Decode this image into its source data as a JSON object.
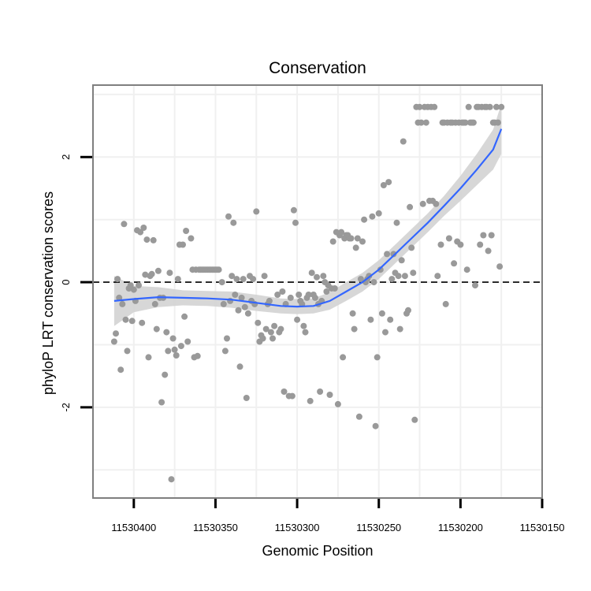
{
  "chart_data": {
    "type": "scatter",
    "title": "Conservation",
    "xlabel": "Genomic Position",
    "ylabel": "phyloP LRT conservation scores",
    "x_reversed": true,
    "xlim": [
      11530150,
      11530425
    ],
    "ylim": [
      -3.45,
      3.15
    ],
    "xticks": [
      11530400,
      11530350,
      11530300,
      11530250,
      11530200,
      11530150
    ],
    "xtick_labels": [
      "11530400",
      "11530350",
      "11530300",
      "11530250",
      "11530200",
      "11530150"
    ],
    "yticks": [
      2,
      0,
      -2
    ],
    "ytick_labels": [
      "2",
      "0",
      "-2"
    ],
    "reference_line": {
      "y": 0,
      "style": "dashed"
    },
    "grid": true,
    "colors": {
      "points": "#999999",
      "smooth_line": "#3366ff",
      "ribbon": "#d3d3d3",
      "panel_border": "#7f7f7f",
      "grid": "#f0f0f0"
    },
    "points": [
      {
        "x": 11530412,
        "y": -0.95
      },
      {
        "x": 11530411,
        "y": -0.82
      },
      {
        "x": 11530410,
        "y": 0.05
      },
      {
        "x": 11530409,
        "y": -0.25
      },
      {
        "x": 11530408,
        "y": -1.4
      },
      {
        "x": 11530407,
        "y": -0.35
      },
      {
        "x": 11530406,
        "y": 0.93
      },
      {
        "x": 11530405,
        "y": -0.6
      },
      {
        "x": 11530404,
        "y": -1.1
      },
      {
        "x": 11530403,
        "y": -0.1
      },
      {
        "x": 11530402,
        "y": -0.05
      },
      {
        "x": 11530401,
        "y": -0.62
      },
      {
        "x": 11530400,
        "y": -0.12
      },
      {
        "x": 11530399,
        "y": -0.3
      },
      {
        "x": 11530398,
        "y": 0.83
      },
      {
        "x": 11530397,
        "y": -0.05
      },
      {
        "x": 11530396,
        "y": 0.8
      },
      {
        "x": 11530395,
        "y": -0.65
      },
      {
        "x": 11530394,
        "y": 0.87
      },
      {
        "x": 11530393,
        "y": 0.12
      },
      {
        "x": 11530392,
        "y": 0.68
      },
      {
        "x": 11530391,
        "y": -1.2
      },
      {
        "x": 11530390,
        "y": 0.1
      },
      {
        "x": 11530389,
        "y": 0.13
      },
      {
        "x": 11530388,
        "y": 0.67
      },
      {
        "x": 11530387,
        "y": -0.35
      },
      {
        "x": 11530386,
        "y": -0.75
      },
      {
        "x": 11530385,
        "y": 0.18
      },
      {
        "x": 11530384,
        "y": -0.25
      },
      {
        "x": 11530383,
        "y": -1.92
      },
      {
        "x": 11530382,
        "y": -0.25
      },
      {
        "x": 11530381,
        "y": -1.48
      },
      {
        "x": 11530380,
        "y": -0.8
      },
      {
        "x": 11530379,
        "y": -1.1
      },
      {
        "x": 11530378,
        "y": 0.15
      },
      {
        "x": 11530377,
        "y": -3.15
      },
      {
        "x": 11530376,
        "y": -0.9
      },
      {
        "x": 11530375,
        "y": -1.08
      },
      {
        "x": 11530374,
        "y": -1.17
      },
      {
        "x": 11530373,
        "y": 0.05
      },
      {
        "x": 11530372,
        "y": 0.6
      },
      {
        "x": 11530371,
        "y": -1.02
      },
      {
        "x": 11530370,
        "y": 0.6
      },
      {
        "x": 11530369,
        "y": -0.55
      },
      {
        "x": 11530368,
        "y": 0.82
      },
      {
        "x": 11530367,
        "y": -0.95
      },
      {
        "x": 11530365,
        "y": 0.7
      },
      {
        "x": 11530364,
        "y": 0.2
      },
      {
        "x": 11530363,
        "y": -1.2
      },
      {
        "x": 11530362,
        "y": 0.2
      },
      {
        "x": 11530361,
        "y": -1.18
      },
      {
        "x": 11530360,
        "y": 0.2
      },
      {
        "x": 11530359,
        "y": 0.2
      },
      {
        "x": 11530358,
        "y": 0.2
      },
      {
        "x": 11530357,
        "y": 0.2
      },
      {
        "x": 11530356,
        "y": 0.2
      },
      {
        "x": 11530355,
        "y": 0.2
      },
      {
        "x": 11530354,
        "y": 0.2
      },
      {
        "x": 11530353,
        "y": 0.2
      },
      {
        "x": 11530352,
        "y": 0.2
      },
      {
        "x": 11530351,
        "y": 0.2
      },
      {
        "x": 11530350,
        "y": 0.2
      },
      {
        "x": 11530349,
        "y": 0.2
      },
      {
        "x": 11530348,
        "y": 0.2
      },
      {
        "x": 11530346,
        "y": 0.0
      },
      {
        "x": 11530345,
        "y": -0.35
      },
      {
        "x": 11530344,
        "y": -1.1
      },
      {
        "x": 11530343,
        "y": -0.9
      },
      {
        "x": 11530342,
        "y": 1.05
      },
      {
        "x": 11530341,
        "y": -0.3
      },
      {
        "x": 11530340,
        "y": 0.1
      },
      {
        "x": 11530339,
        "y": 0.95
      },
      {
        "x": 11530338,
        "y": -0.2
      },
      {
        "x": 11530337,
        "y": 0.05
      },
      {
        "x": 11530336,
        "y": -0.45
      },
      {
        "x": 11530335,
        "y": -1.35
      },
      {
        "x": 11530334,
        "y": -0.25
      },
      {
        "x": 11530333,
        "y": 0.05
      },
      {
        "x": 11530332,
        "y": -0.4
      },
      {
        "x": 11530331,
        "y": -1.85
      },
      {
        "x": 11530330,
        "y": -0.5
      },
      {
        "x": 11530329,
        "y": 0.1
      },
      {
        "x": 11530328,
        "y": -0.3
      },
      {
        "x": 11530327,
        "y": 0.05
      },
      {
        "x": 11530326,
        "y": -0.35
      },
      {
        "x": 11530325,
        "y": 1.13
      },
      {
        "x": 11530324,
        "y": -0.65
      },
      {
        "x": 11530323,
        "y": -0.95
      },
      {
        "x": 11530322,
        "y": -0.85
      },
      {
        "x": 11530321,
        "y": -0.9
      },
      {
        "x": 11530320,
        "y": 0.1
      },
      {
        "x": 11530319,
        "y": -0.75
      },
      {
        "x": 11530318,
        "y": -0.35
      },
      {
        "x": 11530317,
        "y": -0.3
      },
      {
        "x": 11530316,
        "y": -0.8
      },
      {
        "x": 11530315,
        "y": -0.9
      },
      {
        "x": 11530314,
        "y": -0.7
      },
      {
        "x": 11530312,
        "y": -0.2
      },
      {
        "x": 11530311,
        "y": -0.8
      },
      {
        "x": 11530310,
        "y": -0.75
      },
      {
        "x": 11530309,
        "y": -0.15
      },
      {
        "x": 11530308,
        "y": -1.75
      },
      {
        "x": 11530307,
        "y": -0.35
      },
      {
        "x": 11530305,
        "y": -1.82
      },
      {
        "x": 11530304,
        "y": -0.25
      },
      {
        "x": 11530303,
        "y": -1.82
      },
      {
        "x": 11530302,
        "y": 1.15
      },
      {
        "x": 11530301,
        "y": 0.95
      },
      {
        "x": 11530300,
        "y": -0.6
      },
      {
        "x": 11530299,
        "y": -0.2
      },
      {
        "x": 11530298,
        "y": -0.3
      },
      {
        "x": 11530297,
        "y": -0.35
      },
      {
        "x": 11530296,
        "y": -0.7
      },
      {
        "x": 11530295,
        "y": -0.8
      },
      {
        "x": 11530294,
        "y": -0.25
      },
      {
        "x": 11530293,
        "y": -0.2
      },
      {
        "x": 11530292,
        "y": -1.9
      },
      {
        "x": 11530291,
        "y": 0.15
      },
      {
        "x": 11530290,
        "y": -0.2
      },
      {
        "x": 11530289,
        "y": -0.25
      },
      {
        "x": 11530288,
        "y": 0.08
      },
      {
        "x": 11530287,
        "y": -0.35
      },
      {
        "x": 11530286,
        "y": -1.75
      },
      {
        "x": 11530285,
        "y": -0.3
      },
      {
        "x": 11530284,
        "y": 0.1
      },
      {
        "x": 11530283,
        "y": 0.0
      },
      {
        "x": 11530282,
        "y": -0.15
      },
      {
        "x": 11530281,
        "y": -0.05
      },
      {
        "x": 11530280,
        "y": -1.8
      },
      {
        "x": 11530279,
        "y": -0.1
      },
      {
        "x": 11530278,
        "y": 0.65
      },
      {
        "x": 11530277,
        "y": -0.1
      },
      {
        "x": 11530276,
        "y": 0.8
      },
      {
        "x": 11530275,
        "y": -1.95
      },
      {
        "x": 11530274,
        "y": 0.75
      },
      {
        "x": 11530273,
        "y": 0.8
      },
      {
        "x": 11530272,
        "y": -1.2
      },
      {
        "x": 11530271,
        "y": 0.7
      },
      {
        "x": 11530270,
        "y": 0.75
      },
      {
        "x": 11530269,
        "y": 0.75
      },
      {
        "x": 11530268,
        "y": 0.7
      },
      {
        "x": 11530267,
        "y": 0.7
      },
      {
        "x": 11530266,
        "y": -0.5
      },
      {
        "x": 11530265,
        "y": -0.75
      },
      {
        "x": 11530264,
        "y": 0.55
      },
      {
        "x": 11530263,
        "y": 0.7
      },
      {
        "x": 11530262,
        "y": -2.15
      },
      {
        "x": 11530261,
        "y": 0.05
      },
      {
        "x": 11530260,
        "y": 0.65
      },
      {
        "x": 11530259,
        "y": 1.0
      },
      {
        "x": 11530258,
        "y": 0.0
      },
      {
        "x": 11530257,
        "y": 0.05
      },
      {
        "x": 11530256,
        "y": 0.1
      },
      {
        "x": 11530255,
        "y": -0.6
      },
      {
        "x": 11530254,
        "y": 1.05
      },
      {
        "x": 11530253,
        "y": 0.0
      },
      {
        "x": 11530252,
        "y": -2.3
      },
      {
        "x": 11530251,
        "y": -1.2
      },
      {
        "x": 11530250,
        "y": 1.1
      },
      {
        "x": 11530249,
        "y": 0.2
      },
      {
        "x": 11530248,
        "y": -0.5
      },
      {
        "x": 11530247,
        "y": 1.55
      },
      {
        "x": 11530246,
        "y": -0.8
      },
      {
        "x": 11530245,
        "y": 0.45
      },
      {
        "x": 11530244,
        "y": 1.6
      },
      {
        "x": 11530243,
        "y": -0.6
      },
      {
        "x": 11530242,
        "y": 0.05
      },
      {
        "x": 11530241,
        "y": 0.45
      },
      {
        "x": 11530240,
        "y": 0.15
      },
      {
        "x": 11530239,
        "y": 0.95
      },
      {
        "x": 11530238,
        "y": 0.1
      },
      {
        "x": 11530237,
        "y": -0.75
      },
      {
        "x": 11530236,
        "y": 0.35
      },
      {
        "x": 11530235,
        "y": 2.25
      },
      {
        "x": 11530234,
        "y": 0.1
      },
      {
        "x": 11530233,
        "y": -0.5
      },
      {
        "x": 11530232,
        "y": -0.45
      },
      {
        "x": 11530231,
        "y": 1.2
      },
      {
        "x": 11530230,
        "y": 0.55
      },
      {
        "x": 11530229,
        "y": 0.15
      },
      {
        "x": 11530228,
        "y": -2.2
      },
      {
        "x": 11530227,
        "y": 2.8
      },
      {
        "x": 11530226,
        "y": 2.55
      },
      {
        "x": 11530225,
        "y": 2.8
      },
      {
        "x": 11530224,
        "y": 2.55
      },
      {
        "x": 11530223,
        "y": 1.25
      },
      {
        "x": 11530222,
        "y": 2.8
      },
      {
        "x": 11530221,
        "y": 2.55
      },
      {
        "x": 11530220,
        "y": 2.8
      },
      {
        "x": 11530219,
        "y": 1.3
      },
      {
        "x": 11530218,
        "y": 2.8
      },
      {
        "x": 11530217,
        "y": 1.3
      },
      {
        "x": 11530216,
        "y": 2.8
      },
      {
        "x": 11530215,
        "y": 1.25
      },
      {
        "x": 11530214,
        "y": 0.1
      },
      {
        "x": 11530212,
        "y": 0.6
      },
      {
        "x": 11530211,
        "y": 2.55
      },
      {
        "x": 11530210,
        "y": 2.55
      },
      {
        "x": 11530209,
        "y": -0.35
      },
      {
        "x": 11530208,
        "y": 2.55
      },
      {
        "x": 11530207,
        "y": 0.7
      },
      {
        "x": 11530206,
        "y": 2.55
      },
      {
        "x": 11530205,
        "y": 2.55
      },
      {
        "x": 11530204,
        "y": 0.3
      },
      {
        "x": 11530203,
        "y": 2.55
      },
      {
        "x": 11530202,
        "y": 0.65
      },
      {
        "x": 11530201,
        "y": 2.55
      },
      {
        "x": 11530200,
        "y": 0.6
      },
      {
        "x": 11530199,
        "y": 2.55
      },
      {
        "x": 11530198,
        "y": 2.55
      },
      {
        "x": 11530197,
        "y": 2.55
      },
      {
        "x": 11530196,
        "y": 0.2
      },
      {
        "x": 11530195,
        "y": 2.8
      },
      {
        "x": 11530194,
        "y": 2.55
      },
      {
        "x": 11530193,
        "y": 2.55
      },
      {
        "x": 11530192,
        "y": 2.55
      },
      {
        "x": 11530191,
        "y": -0.05
      },
      {
        "x": 11530190,
        "y": 2.8
      },
      {
        "x": 11530189,
        "y": 2.8
      },
      {
        "x": 11530188,
        "y": 0.6
      },
      {
        "x": 11530187,
        "y": 2.8
      },
      {
        "x": 11530186,
        "y": 0.75
      },
      {
        "x": 11530185,
        "y": 2.8
      },
      {
        "x": 11530184,
        "y": 2.8
      },
      {
        "x": 11530183,
        "y": 0.5
      },
      {
        "x": 11530182,
        "y": 2.8
      },
      {
        "x": 11530181,
        "y": 0.75
      },
      {
        "x": 11530180,
        "y": 2.55
      },
      {
        "x": 11530179,
        "y": 2.55
      },
      {
        "x": 11530178,
        "y": 2.8
      },
      {
        "x": 11530177,
        "y": 2.55
      },
      {
        "x": 11530176,
        "y": 0.25
      },
      {
        "x": 11530175,
        "y": 2.8
      }
    ],
    "smooth_fit": [
      {
        "x": 11530412,
        "y": -0.3,
        "lo": -0.7,
        "hi": 0.1
      },
      {
        "x": 11530400,
        "y": -0.27,
        "lo": -0.48,
        "hi": -0.06
      },
      {
        "x": 11530385,
        "y": -0.24,
        "lo": -0.4,
        "hi": -0.08
      },
      {
        "x": 11530370,
        "y": -0.25,
        "lo": -0.37,
        "hi": -0.13
      },
      {
        "x": 11530355,
        "y": -0.26,
        "lo": -0.38,
        "hi": -0.14
      },
      {
        "x": 11530340,
        "y": -0.28,
        "lo": -0.41,
        "hi": -0.15
      },
      {
        "x": 11530325,
        "y": -0.33,
        "lo": -0.46,
        "hi": -0.2
      },
      {
        "x": 11530310,
        "y": -0.38,
        "lo": -0.5,
        "hi": -0.26
      },
      {
        "x": 11530300,
        "y": -0.39,
        "lo": -0.51,
        "hi": -0.27
      },
      {
        "x": 11530290,
        "y": -0.38,
        "lo": -0.5,
        "hi": -0.26
      },
      {
        "x": 11530280,
        "y": -0.3,
        "lo": -0.44,
        "hi": -0.16
      },
      {
        "x": 11530270,
        "y": -0.15,
        "lo": -0.3,
        "hi": 0.0
      },
      {
        "x": 11530260,
        "y": 0.0,
        "lo": -0.15,
        "hi": 0.15
      },
      {
        "x": 11530250,
        "y": 0.2,
        "lo": 0.05,
        "hi": 0.35
      },
      {
        "x": 11530240,
        "y": 0.45,
        "lo": 0.3,
        "hi": 0.6
      },
      {
        "x": 11530230,
        "y": 0.7,
        "lo": 0.55,
        "hi": 0.85
      },
      {
        "x": 11530220,
        "y": 0.95,
        "lo": 0.8,
        "hi": 1.1
      },
      {
        "x": 11530210,
        "y": 1.22,
        "lo": 1.06,
        "hi": 1.38
      },
      {
        "x": 11530200,
        "y": 1.5,
        "lo": 1.3,
        "hi": 1.7
      },
      {
        "x": 11530190,
        "y": 1.8,
        "lo": 1.55,
        "hi": 2.05
      },
      {
        "x": 11530180,
        "y": 2.12,
        "lo": 1.8,
        "hi": 2.44
      },
      {
        "x": 11530175,
        "y": 2.45,
        "lo": 2.05,
        "hi": 2.85
      }
    ]
  }
}
